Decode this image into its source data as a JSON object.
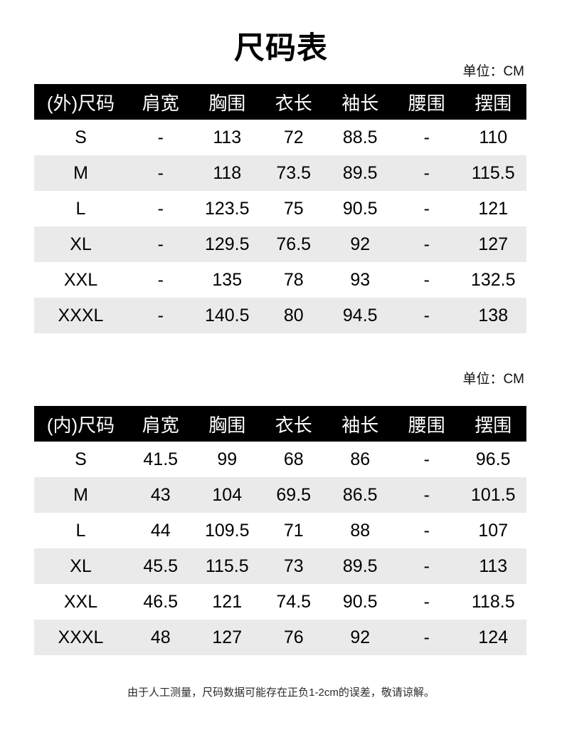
{
  "page": {
    "title": "尺码表",
    "footer_note": "由于人工测量，尺码数据可能存在正负1-2cm的误差，敬请谅解。"
  },
  "colors": {
    "header_bg": "#000000",
    "header_text": "#ffffff",
    "row_alt_bg": "#eaeaea",
    "body_text": "#000000",
    "background": "#ffffff"
  },
  "tables": [
    {
      "name": "outer-size-table",
      "unit_label": "单位：CM",
      "columns": [
        "(外)尺码",
        "肩宽",
        "胸围",
        "衣长",
        "袖长",
        "腰围",
        "摆围"
      ],
      "rows": [
        [
          "S",
          "-",
          "113",
          "72",
          "88.5",
          "-",
          "110"
        ],
        [
          "M",
          "-",
          "118",
          "73.5",
          "89.5",
          "-",
          "115.5"
        ],
        [
          "L",
          "-",
          "123.5",
          "75",
          "90.5",
          "-",
          "121"
        ],
        [
          "XL",
          "-",
          "129.5",
          "76.5",
          "92",
          "-",
          "127"
        ],
        [
          "XXL",
          "-",
          "135",
          "78",
          "93",
          "-",
          "132.5"
        ],
        [
          "XXXL",
          "-",
          "140.5",
          "80",
          "94.5",
          "-",
          "138"
        ]
      ]
    },
    {
      "name": "inner-size-table",
      "unit_label": "单位：CM",
      "columns": [
        "(内)尺码",
        "肩宽",
        "胸围",
        "衣长",
        "袖长",
        "腰围",
        "摆围"
      ],
      "rows": [
        [
          "S",
          "41.5",
          "99",
          "68",
          "86",
          "-",
          "96.5"
        ],
        [
          "M",
          "43",
          "104",
          "69.5",
          "86.5",
          "-",
          "101.5"
        ],
        [
          "L",
          "44",
          "109.5",
          "71",
          "88",
          "-",
          "107"
        ],
        [
          "XL",
          "45.5",
          "115.5",
          "73",
          "89.5",
          "-",
          "113"
        ],
        [
          "XXL",
          "46.5",
          "121",
          "74.5",
          "90.5",
          "-",
          "118.5"
        ],
        [
          "XXXL",
          "48",
          "127",
          "76",
          "92",
          "-",
          "124"
        ]
      ]
    }
  ]
}
